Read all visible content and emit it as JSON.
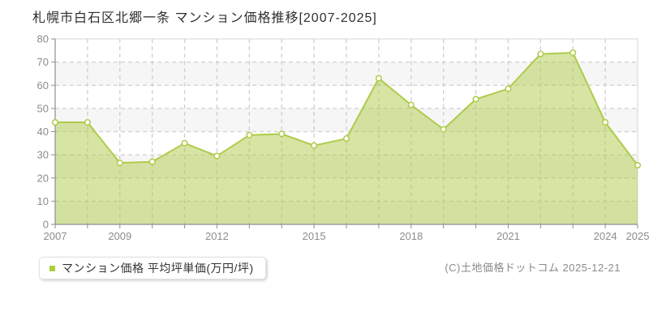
{
  "title": "札幌市白石区北郷一条 マンション価格推移[2007-2025]",
  "legend": {
    "label": "マンション価格 平均坪単価(万円/坪)",
    "marker_color": "#aed03c"
  },
  "footer": {
    "copyright": "(C)土地価格ドットコム 2025-12-21"
  },
  "chart_data": {
    "type": "area",
    "title": "札幌市白石区北郷一条 マンション価格推移[2007-2025]",
    "series_name": "マンション価格 平均坪単価(万円/坪)",
    "x": [
      2007,
      2008,
      2009,
      2010,
      2011,
      2012,
      2013,
      2014,
      2015,
      2016,
      2017,
      2018,
      2019,
      2020,
      2021,
      2022,
      2023,
      2024,
      2025
    ],
    "values": [
      44,
      44,
      26.5,
      27,
      35,
      29.5,
      38.5,
      39,
      34,
      37,
      63,
      51.5,
      41,
      54,
      58.5,
      73.5,
      74,
      44,
      25.5
    ],
    "xlabel": "",
    "ylabel": "",
    "ylim": [
      0,
      80
    ],
    "ytick_step": 10,
    "yticks": [
      0,
      10,
      20,
      30,
      40,
      50,
      60,
      70,
      80
    ],
    "xtick_labels": [
      "2007",
      "2009",
      "2012",
      "2015",
      "2018",
      "2021",
      "2024",
      "2025"
    ],
    "grid": true,
    "grid_style": "dashed",
    "legend_position": "bottom-left",
    "colors": {
      "line": "#aecb4a",
      "fill_opacity": 0.5,
      "marker_fill": "#ffffff",
      "grid": "#cfcfcf",
      "band": "#f6f6f6",
      "border": "#d4d4d4",
      "axis": "#8e8e8e",
      "label": "#8c8c8c"
    }
  }
}
